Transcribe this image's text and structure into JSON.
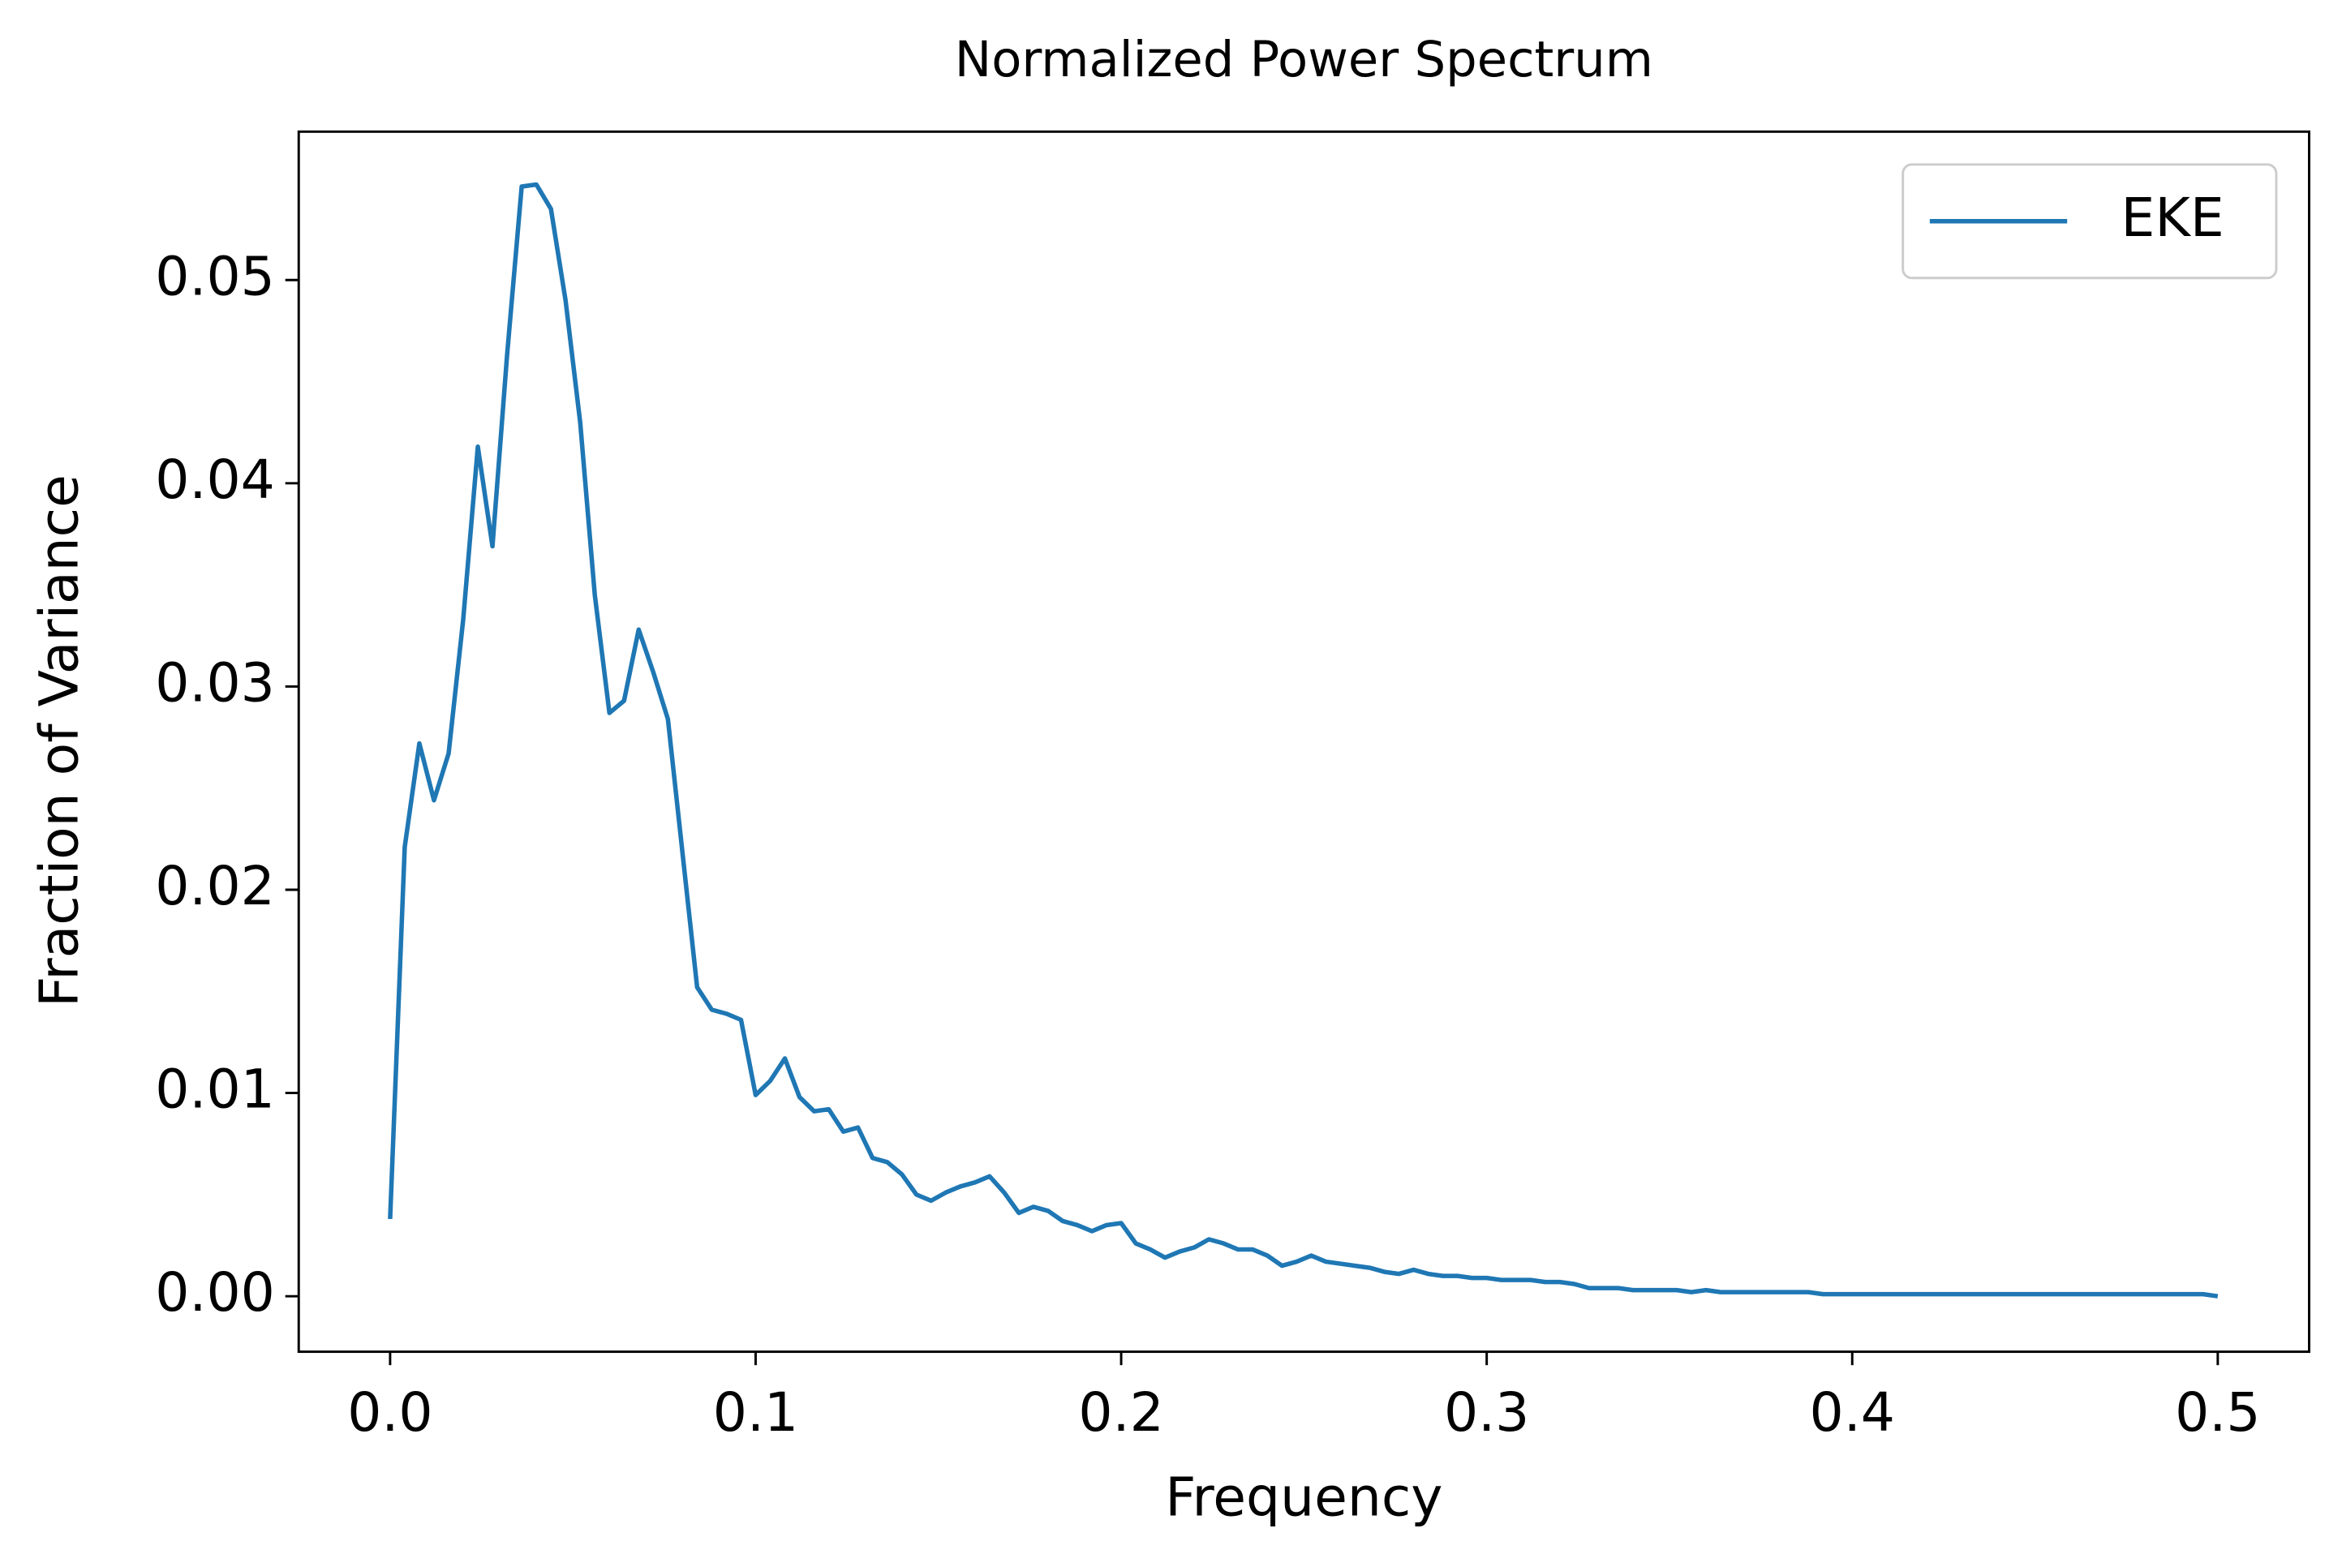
{
  "chart_data": {
    "type": "line",
    "title": "Normalized Power Spectrum",
    "x_label": "Frequency",
    "y_label": "Fraction of Variance",
    "x": [
      0,
      0.004,
      0.008,
      0.012,
      0.016,
      0.02,
      0.024,
      0.028,
      0.032,
      0.036,
      0.04,
      0.044,
      0.048,
      0.052,
      0.056,
      0.06,
      0.064,
      0.068,
      0.072,
      0.076,
      0.08,
      0.084,
      0.088,
      0.092,
      0.096,
      0.1,
      0.104,
      0.108,
      0.112,
      0.116,
      0.12,
      0.124,
      0.128,
      0.132,
      0.136,
      0.14,
      0.144,
      0.148,
      0.152,
      0.156,
      0.16,
      0.164,
      0.168,
      0.172,
      0.176,
      0.18,
      0.184,
      0.188,
      0.192,
      0.196,
      0.2,
      0.204,
      0.208,
      0.212,
      0.216,
      0.22,
      0.224,
      0.228,
      0.232,
      0.236,
      0.24,
      0.244,
      0.248,
      0.252,
      0.256,
      0.26,
      0.264,
      0.268,
      0.272,
      0.276,
      0.28,
      0.284,
      0.288,
      0.292,
      0.296,
      0.3,
      0.304,
      0.308,
      0.312,
      0.316,
      0.32,
      0.324,
      0.328,
      0.332,
      0.336,
      0.34,
      0.344,
      0.348,
      0.352,
      0.356,
      0.36,
      0.364,
      0.368,
      0.372,
      0.376,
      0.38,
      0.384,
      0.388,
      0.392,
      0.396,
      0.4,
      0.404,
      0.408,
      0.412,
      0.416,
      0.42,
      0.424,
      0.428,
      0.432,
      0.436,
      0.44,
      0.444,
      0.448,
      0.452,
      0.456,
      0.46,
      0.464,
      0.468,
      0.472,
      0.476,
      0.48,
      0.484,
      0.488,
      0.492,
      0.496,
      0.5
    ],
    "series": [
      {
        "name": "EKE",
        "color": "#1f77b4",
        "values": [
          0.0038,
          0.0221,
          0.0272,
          0.0244,
          0.0267,
          0.0333,
          0.0418,
          0.0369,
          0.0463,
          0.0546,
          0.0547,
          0.0535,
          0.049,
          0.043,
          0.0345,
          0.0287,
          0.0293,
          0.0328,
          0.0307,
          0.0284,
          0.0218,
          0.0152,
          0.0141,
          0.0139,
          0.0136,
          0.0099,
          0.0106,
          0.0117,
          0.0098,
          0.0091,
          0.0092,
          0.0081,
          0.0083,
          0.0068,
          0.0066,
          0.006,
          0.005,
          0.0047,
          0.0051,
          0.0054,
          0.0056,
          0.0059,
          0.0051,
          0.0041,
          0.0044,
          0.0042,
          0.0037,
          0.0035,
          0.0032,
          0.0035,
          0.0036,
          0.0026,
          0.0023,
          0.0019,
          0.0022,
          0.0024,
          0.0028,
          0.0026,
          0.0023,
          0.0023,
          0.002,
          0.0015,
          0.0017,
          0.002,
          0.0017,
          0.0016,
          0.0015,
          0.0014,
          0.0012,
          0.0011,
          0.0013,
          0.0011,
          0.001,
          0.001,
          0.0009,
          0.0009,
          0.0008,
          0.0008,
          0.0008,
          0.0007,
          0.0007,
          0.0006,
          0.0004,
          0.0004,
          0.0004,
          0.0003,
          0.0003,
          0.0003,
          0.0003,
          0.0002,
          0.0003,
          0.0002,
          0.0002,
          0.0002,
          0.0002,
          0.0002,
          0.0002,
          0.0002,
          0.0001,
          0.0001,
          0.0001,
          0.0001,
          0.0001,
          0.0001,
          0.0001,
          0.0001,
          0.0001,
          0.0001,
          0.0001,
          0.0001,
          0.0001,
          0.0001,
          0.0001,
          0.0001,
          0.0001,
          0.0001,
          0.0001,
          0.0001,
          0.0001,
          0.0001,
          0.0001,
          0.0001,
          0.0001,
          0.0001,
          0.0001,
          0
        ]
      }
    ],
    "xlim": [
      -0.025,
      0.525
    ],
    "ylim": [
      -0.00273,
      0.0573
    ],
    "xticks": [
      {
        "value": 0,
        "label": "0.0"
      },
      0.1,
      0.2,
      0.3,
      0.4,
      0.5
    ],
    "yticks": [
      {
        "value": 0,
        "label": "0.00"
      },
      0.01,
      0.02,
      0.03,
      0.04,
      0.05
    ],
    "legend": "upper right",
    "grid": false
  }
}
